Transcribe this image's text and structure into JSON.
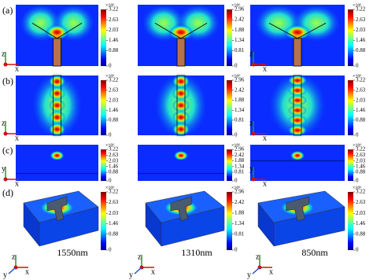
{
  "rows": [
    {
      "label": "(a)",
      "axes": {
        "vertical": "z",
        "horizontal": "x"
      }
    },
    {
      "label": "(b)",
      "axes": {
        "vertical": "z",
        "horizontal": "x"
      }
    },
    {
      "label": "(c)",
      "axes": {
        "vertical": "y",
        "horizontal": "x"
      }
    },
    {
      "label": "(d)",
      "axes": {
        "vertical": "z",
        "horizontal": "x",
        "depth": "y"
      }
    }
  ],
  "columns": [
    {
      "wavelength": "1550nm",
      "colorbar": {
        "multiplier": "×10⁶",
        "ticks": [
          3.22,
          2.63,
          2.03,
          1.46,
          0.88,
          0
        ]
      }
    },
    {
      "wavelength": "1310nm",
      "colorbar": {
        "multiplier": "×10⁶",
        "ticks": [
          2.96,
          2.42,
          1.88,
          1.34,
          0.81,
          0
        ]
      }
    },
    {
      "wavelength": "850nm",
      "colorbar": {
        "multiplier": "×10⁶",
        "ticks": [
          3.22,
          2.63,
          2.03,
          1.46,
          0.88,
          0
        ]
      }
    }
  ]
}
